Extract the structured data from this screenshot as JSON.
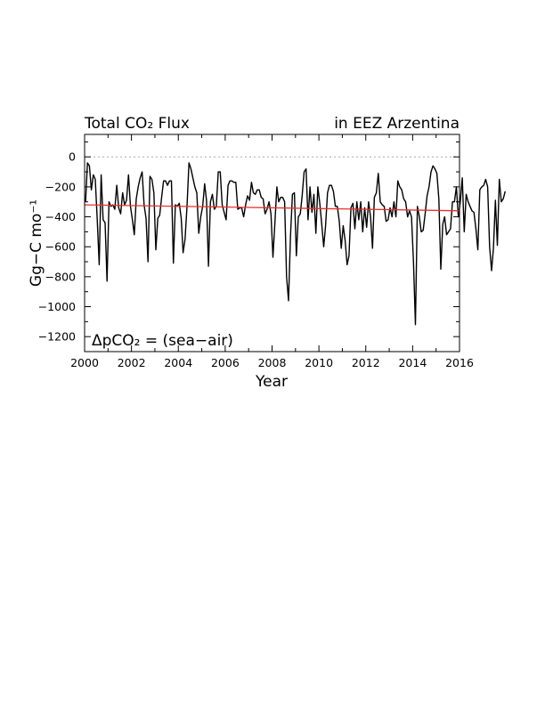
{
  "chart_data": {
    "type": "line",
    "title_left": "Total CO₂ Flux",
    "title_right": "in EEZ Arzentina",
    "xlabel": "Year",
    "ylabel": "Gg−C mo⁻¹",
    "annotation": "ΔpCO₂ = (sea−air)",
    "xlim": [
      2000,
      2016
    ],
    "ylim": [
      -1300,
      150
    ],
    "xticks": [
      2000,
      2002,
      2004,
      2006,
      2008,
      2010,
      2012,
      2014,
      2016
    ],
    "xtick_labels": [
      "2000",
      "2002",
      "2004",
      "2006",
      "2008",
      "2010",
      "2012",
      "2014",
      "2016"
    ],
    "yticks": [
      0,
      -200,
      -400,
      -600,
      -800,
      -1000,
      -1200
    ],
    "ytick_labels": [
      "0",
      "−200",
      "−400",
      "−600",
      "−800",
      "−1000",
      "−1200"
    ],
    "zero_line": {
      "y": 0,
      "style": "dotted",
      "color": "#aaaaaa"
    },
    "series": [
      {
        "color": "#000000",
        "x_start": 2000.04,
        "x_step": 0.0833,
        "values": [
          -300,
          -40,
          -60,
          -220,
          -120,
          -150,
          -420,
          -720,
          -120,
          -420,
          -440,
          -830,
          -300,
          -330,
          -320,
          -350,
          -190,
          -340,
          -380,
          -240,
          -320,
          -290,
          -120,
          -330,
          -420,
          -520,
          -280,
          -200,
          -140,
          -100,
          -320,
          -410,
          -700,
          -130,
          -150,
          -240,
          -620,
          -410,
          -390,
          -270,
          -160,
          -160,
          -190,
          -160,
          -160,
          -710,
          -320,
          -330,
          -310,
          -410,
          -640,
          -550,
          -330,
          -40,
          -80,
          -140,
          -200,
          -240,
          -510,
          -400,
          -330,
          -180,
          -290,
          -730,
          -300,
          -250,
          -350,
          -330,
          -100,
          -100,
          -320,
          -370,
          -420,
          -190,
          -160,
          -160,
          -170,
          -170,
          -350,
          -340,
          -340,
          -400,
          -320,
          -260,
          -290,
          -170,
          -240,
          -250,
          -220,
          -220,
          -270,
          -280,
          -380,
          -350,
          -300,
          -380,
          -670,
          -440,
          -200,
          -300,
          -270,
          -270,
          -300,
          -800,
          -960,
          -530,
          -250,
          -240,
          -660,
          -400,
          -380,
          -260,
          -100,
          -80,
          -420,
          -200,
          -370,
          -250,
          -510,
          -200,
          -310,
          -450,
          -600,
          -460,
          -240,
          -190,
          -190,
          -230,
          -330,
          -330,
          -430,
          -610,
          -460,
          -560,
          -720,
          -660,
          -340,
          -310,
          -480,
          -300,
          -420,
          -300,
          -500,
          -340,
          -470,
          -300,
          -400,
          -610,
          -270,
          -240,
          -110,
          -300,
          -320,
          -330,
          -430,
          -420,
          -340,
          -400,
          -300,
          -400,
          -160,
          -200,
          -220,
          -280,
          -300,
          -400,
          -360,
          -400,
          -700,
          -1120,
          -330,
          -400,
          -500,
          -490,
          -380,
          -260,
          -200,
          -100,
          -60,
          -80,
          -110,
          -280,
          -750,
          -450,
          -400,
          -520,
          -500,
          -480,
          -300,
          -300,
          -200,
          -400,
          -300,
          -140,
          -500,
          -250,
          -300,
          -330,
          -360,
          -370,
          -480,
          -620,
          -220,
          -200,
          -190,
          -150,
          -200,
          -600,
          -760,
          -610,
          -290,
          -590,
          -150,
          -300,
          -280,
          -230
        ]
      },
      {
        "color": "#e8302a",
        "type": "trend",
        "x": [
          2000,
          2016
        ],
        "values": [
          -320,
          -360
        ]
      }
    ],
    "grid": false,
    "legend": "none"
  }
}
